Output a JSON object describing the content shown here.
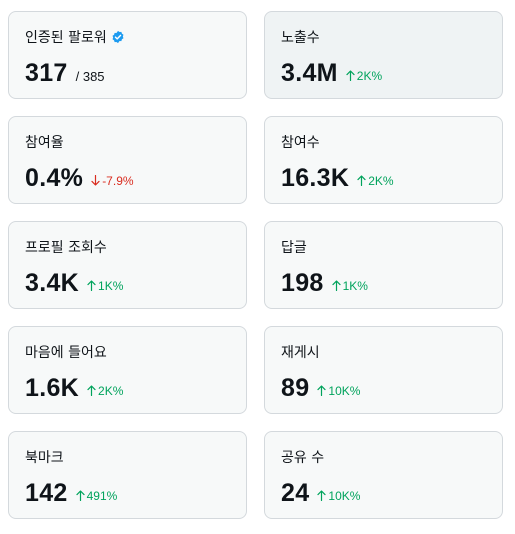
{
  "cards": [
    {
      "label": "인증된 팔로워",
      "value": "317",
      "sub": "/ 385",
      "verified_icon": "verified-badge-icon"
    },
    {
      "label": "노출수",
      "value": "3.4M",
      "delta": "2K%",
      "direction": "up"
    },
    {
      "label": "참여율",
      "value": "0.4%",
      "delta": "-7.9%",
      "direction": "down"
    },
    {
      "label": "참여수",
      "value": "16.3K",
      "delta": "2K%",
      "direction": "up"
    },
    {
      "label": "프로필 조회수",
      "value": "3.4K",
      "delta": "1K%",
      "direction": "up"
    },
    {
      "label": "답글",
      "value": "198",
      "delta": "1K%",
      "direction": "up"
    },
    {
      "label": "마음에 들어요",
      "value": "1.6K",
      "delta": "2K%",
      "direction": "up"
    },
    {
      "label": "재게시",
      "value": "89",
      "delta": "10K%",
      "direction": "up"
    },
    {
      "label": "북마크",
      "value": "142",
      "delta": "491%",
      "direction": "up"
    },
    {
      "label": "공유 수",
      "value": "24",
      "delta": "10K%",
      "direction": "up"
    }
  ],
  "colors": {
    "up": "#00a35c",
    "down": "#d92d20",
    "verified": "#1d9bf0",
    "card_bg": "#f7f9f9",
    "card_border": "#d4d9dd"
  }
}
